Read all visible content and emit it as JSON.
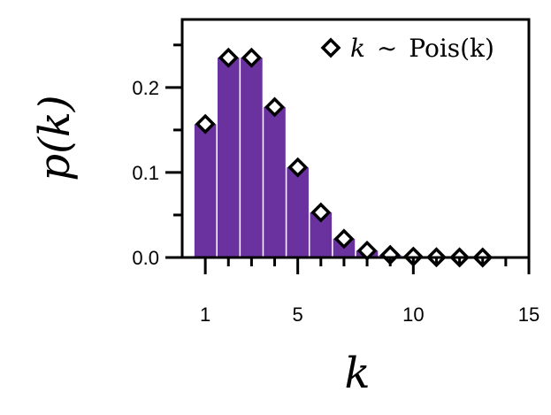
{
  "chart_data": {
    "type": "bar",
    "bar_color": "#6a329f",
    "marker_edge_color": "#000000",
    "marker_face_color": "#ffffff",
    "x": [
      1,
      2,
      3,
      4,
      5,
      6,
      7,
      8,
      9,
      10,
      11,
      12,
      13
    ],
    "values": [
      0.157,
      0.235,
      0.235,
      0.177,
      0.106,
      0.053,
      0.022,
      0.008,
      0.003,
      0.001,
      0.0003,
      0.0001,
      2e-05
    ],
    "xlim": [
      0,
      15
    ],
    "ylim": [
      0,
      0.28
    ],
    "xticks_major": [
      1,
      5,
      10,
      15
    ],
    "xticks_minor": [
      2,
      3,
      4,
      6,
      7,
      8,
      9,
      11,
      12,
      13,
      14
    ],
    "yticks_major": [
      0.0,
      0.1,
      0.2
    ],
    "yticks_minor": [
      0.05,
      0.15,
      0.25
    ],
    "xtick_labels": [
      "1",
      "5",
      "10",
      "15"
    ],
    "ytick_labels": [
      "0.0",
      "0.1",
      "0.2"
    ],
    "xlabel": "k",
    "ylabel": "p(k)",
    "legend": {
      "label_var": "k",
      "label_sim": "∼",
      "label_dist": "Pois(k)",
      "placement": "top-right",
      "marker": "diamond"
    },
    "grid": false
  }
}
